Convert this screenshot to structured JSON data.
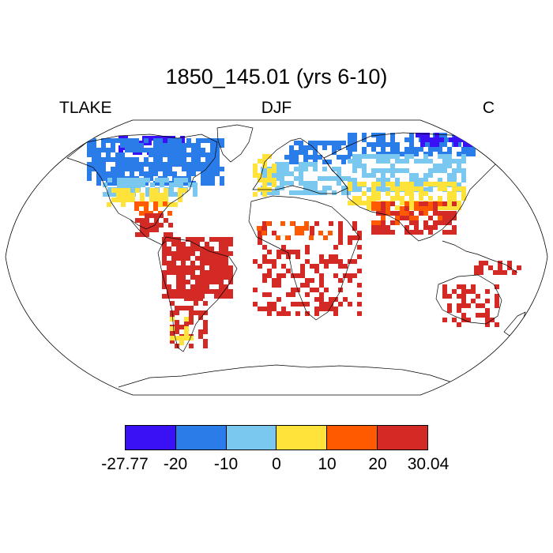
{
  "title": "1850_145.01 (yrs 6-10)",
  "subtitle_left": "TLAKE",
  "subtitle_center": "DJF",
  "subtitle_right": "C",
  "map": {
    "projection": "robinson",
    "field": "TLAKE",
    "season": "DJF"
  },
  "colorbar": {
    "colors": [
      "#3a10f5",
      "#2a7de8",
      "#7ac8f0",
      "#ffe23a",
      "#ff5a00",
      "#d42a26"
    ],
    "labels": [
      "-27.77",
      "-20",
      "-10",
      "0",
      "10",
      "20",
      "30.04"
    ]
  }
}
